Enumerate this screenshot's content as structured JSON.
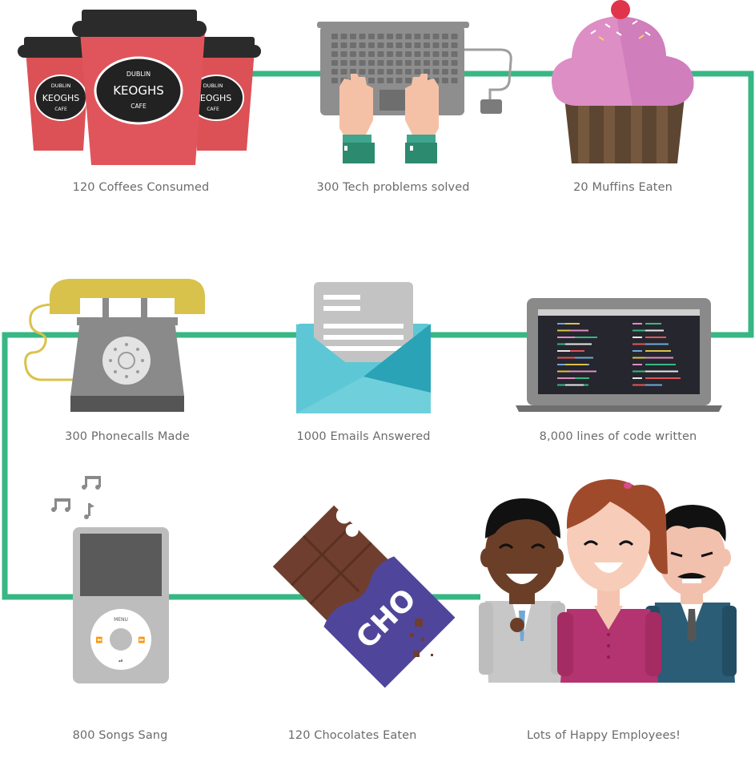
{
  "colors": {
    "path": "#37b783",
    "coffee_red": "#dc5156",
    "cupcake_pink": "#dd8ec5",
    "phone_yellow": "#d9c24c",
    "envelope_teal": "#5ec7d5",
    "choc_purple": "#4f469b",
    "choc_brown": "#6f3e2e",
    "caption_text": "#6b6b6b"
  },
  "stats": [
    {
      "id": "coffee",
      "icon": "coffee-cups-icon",
      "caption": "120 Coffees Consumed"
    },
    {
      "id": "tech",
      "icon": "laptop-typing-icon",
      "caption": "300 Tech problems solved"
    },
    {
      "id": "muffins",
      "icon": "cupcake-icon",
      "caption": "20 Muffins Eaten"
    },
    {
      "id": "phone",
      "icon": "telephone-icon",
      "caption": "300 Phonecalls Made"
    },
    {
      "id": "emails",
      "icon": "envelope-icon",
      "caption": "1000 Emails Answered"
    },
    {
      "id": "code",
      "icon": "code-laptop-icon",
      "caption": "8,000 lines of code written"
    },
    {
      "id": "songs",
      "icon": "music-player-icon",
      "caption": "800 Songs Sang"
    },
    {
      "id": "chocolate",
      "icon": "chocolate-bar-icon",
      "caption": "120 Chocolates Eaten"
    },
    {
      "id": "employees",
      "icon": "happy-employees-icon",
      "caption": "Lots of Happy Employees!"
    }
  ],
  "coffee_label": {
    "top": "DUBLIN",
    "name": "KEOGHS",
    "bottom": "CAFE"
  },
  "ipod_menu": "MENU",
  "chocolate_text": "CHO"
}
